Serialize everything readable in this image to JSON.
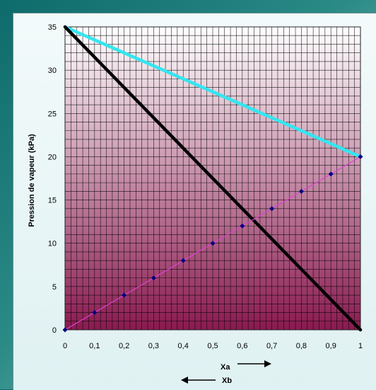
{
  "chart_data": {
    "type": "line",
    "title": "",
    "ylabel": "Pression de vapeur (kPa)",
    "xlabel_forward": "Xa",
    "xlabel_backward": "Xb",
    "xlim": [
      0,
      1
    ],
    "ylim": [
      0,
      35
    ],
    "x_ticks": [
      "0",
      "0,1",
      "0,2",
      "0,3",
      "0,4",
      "0,5",
      "0,6",
      "0,7",
      "0,8",
      "0,9",
      "1"
    ],
    "y_ticks": [
      "0",
      "5",
      "10",
      "15",
      "20",
      "25",
      "30",
      "35"
    ],
    "grid": true,
    "legend": "none",
    "plot_background": [
      "#ffffff",
      "#8a1a50"
    ],
    "series": [
      {
        "color": "#33e6f0",
        "x": [
          0,
          1
        ],
        "y": [
          35,
          20
        ]
      },
      {
        "color": "#000000",
        "x": [
          0,
          1
        ],
        "y": [
          35,
          0
        ]
      },
      {
        "color": "#e040d0",
        "marker_color": "#000080",
        "x": [
          0,
          0.1,
          0.2,
          0.3,
          0.4,
          0.5,
          0.6,
          0.7,
          0.8,
          0.9,
          1
        ],
        "y": [
          0,
          2,
          4,
          6,
          8,
          10,
          12,
          14,
          16,
          18,
          20
        ]
      }
    ]
  }
}
